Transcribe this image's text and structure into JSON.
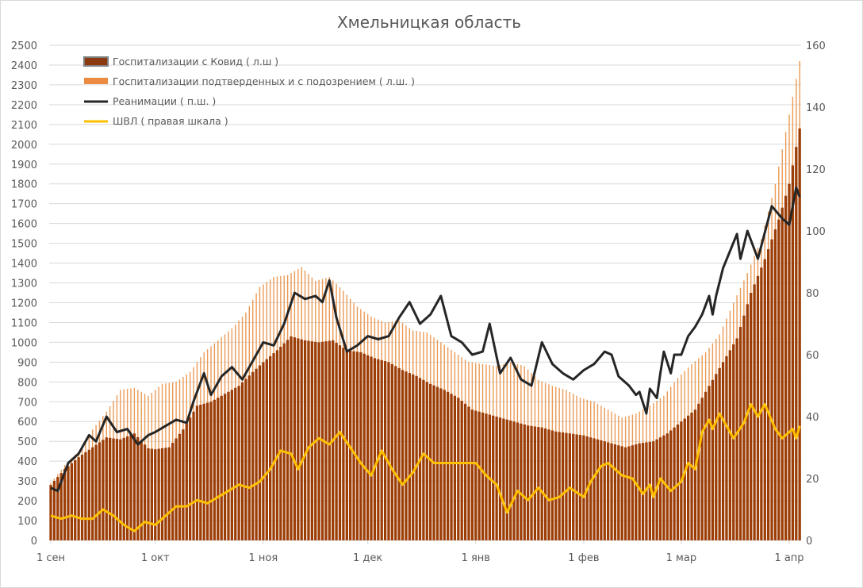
{
  "chart_data": {
    "type": "bar+line",
    "title": "Хмельницкая область",
    "left_axis": {
      "ylim": [
        0,
        2500
      ],
      "step": 100
    },
    "right_axis": {
      "ylim": [
        0,
        160
      ],
      "step": 20
    },
    "x_ticks": [
      {
        "date": "09-01",
        "label": "1 сен"
      },
      {
        "date": "10-01",
        "label": "1 окт"
      },
      {
        "date": "11-01",
        "label": "1 ноя"
      },
      {
        "date": "12-01",
        "label": "1 дек"
      },
      {
        "date": "01-01",
        "label": "1 янв"
      },
      {
        "date": "02-01",
        "label": "1 фев"
      },
      {
        "date": "03-01",
        "label": "1 мар"
      },
      {
        "date": "04-01",
        "label": "1 апр"
      }
    ],
    "grid": true,
    "legend_placement": "top-left",
    "series": [
      {
        "name": "Госпитализации с Ковид ( л.ш )",
        "kind": "bar",
        "axis": "left",
        "color": "#9c3d06",
        "points": [
          [
            "09-01",
            280
          ],
          [
            "09-05",
            360
          ],
          [
            "09-09",
            420
          ],
          [
            "09-13",
            470
          ],
          [
            "09-17",
            520
          ],
          [
            "09-21",
            510
          ],
          [
            "09-25",
            540
          ],
          [
            "09-29",
            465
          ],
          [
            "10-01",
            460
          ],
          [
            "10-05",
            470
          ],
          [
            "10-09",
            560
          ],
          [
            "10-13",
            680
          ],
          [
            "10-17",
            700
          ],
          [
            "10-21",
            740
          ],
          [
            "10-25",
            780
          ],
          [
            "10-29",
            850
          ],
          [
            "11-01",
            900
          ],
          [
            "11-05",
            960
          ],
          [
            "11-09",
            1030
          ],
          [
            "11-13",
            1010
          ],
          [
            "11-17",
            1000
          ],
          [
            "11-21",
            1010
          ],
          [
            "11-25",
            960
          ],
          [
            "11-29",
            950
          ],
          [
            "12-03",
            920
          ],
          [
            "12-07",
            900
          ],
          [
            "12-11",
            860
          ],
          [
            "12-15",
            830
          ],
          [
            "12-19",
            790
          ],
          [
            "12-23",
            760
          ],
          [
            "12-27",
            720
          ],
          [
            "12-31",
            660
          ],
          [
            "01-04",
            640
          ],
          [
            "01-08",
            620
          ],
          [
            "01-12",
            600
          ],
          [
            "01-16",
            580
          ],
          [
            "01-20",
            570
          ],
          [
            "01-24",
            550
          ],
          [
            "01-28",
            540
          ],
          [
            "02-01",
            530
          ],
          [
            "02-05",
            510
          ],
          [
            "02-09",
            490
          ],
          [
            "02-13",
            470
          ],
          [
            "02-17",
            490
          ],
          [
            "02-21",
            500
          ],
          [
            "02-25",
            540
          ],
          [
            "03-01",
            600
          ],
          [
            "03-05",
            660
          ],
          [
            "03-09",
            780
          ],
          [
            "03-13",
            900
          ],
          [
            "03-17",
            1020
          ],
          [
            "03-21",
            1250
          ],
          [
            "03-25",
            1420
          ],
          [
            "03-29",
            1620
          ],
          [
            "04-01",
            1800
          ],
          [
            "04-04",
            2080
          ]
        ]
      },
      {
        "name": "Госпитализации подтверденных и с подозрением ( л.ш. )",
        "kind": "bar",
        "axis": "left",
        "color": "#eb9a55",
        "points": [
          [
            "09-01",
            290
          ],
          [
            "09-05",
            380
          ],
          [
            "09-09",
            450
          ],
          [
            "09-13",
            560
          ],
          [
            "09-17",
            650
          ],
          [
            "09-21",
            760
          ],
          [
            "09-25",
            770
          ],
          [
            "09-29",
            730
          ],
          [
            "10-03",
            790
          ],
          [
            "10-07",
            800
          ],
          [
            "10-11",
            850
          ],
          [
            "10-15",
            950
          ],
          [
            "10-19",
            1010
          ],
          [
            "10-23",
            1070
          ],
          [
            "10-27",
            1150
          ],
          [
            "10-31",
            1280
          ],
          [
            "11-04",
            1330
          ],
          [
            "11-08",
            1340
          ],
          [
            "11-12",
            1380
          ],
          [
            "11-16",
            1310
          ],
          [
            "11-20",
            1330
          ],
          [
            "11-24",
            1260
          ],
          [
            "11-28",
            1180
          ],
          [
            "12-02",
            1130
          ],
          [
            "12-06",
            1100
          ],
          [
            "12-10",
            1110
          ],
          [
            "12-14",
            1060
          ],
          [
            "12-18",
            1050
          ],
          [
            "12-22",
            1000
          ],
          [
            "12-26",
            950
          ],
          [
            "12-30",
            900
          ],
          [
            "01-03",
            890
          ],
          [
            "01-07",
            880
          ],
          [
            "01-11",
            900
          ],
          [
            "01-15",
            880
          ],
          [
            "01-19",
            810
          ],
          [
            "01-23",
            780
          ],
          [
            "01-27",
            760
          ],
          [
            "01-31",
            720
          ],
          [
            "02-04",
            700
          ],
          [
            "02-08",
            660
          ],
          [
            "02-12",
            620
          ],
          [
            "02-16",
            640
          ],
          [
            "02-20",
            680
          ],
          [
            "02-24",
            730
          ],
          [
            "02-28",
            820
          ],
          [
            "03-04",
            890
          ],
          [
            "03-08",
            950
          ],
          [
            "03-12",
            1040
          ],
          [
            "03-16",
            1200
          ],
          [
            "03-20",
            1350
          ],
          [
            "03-24",
            1520
          ],
          [
            "03-28",
            1800
          ],
          [
            "04-01",
            2150
          ],
          [
            "04-04",
            2420
          ]
        ]
      },
      {
        "name": "Реанимации ( п.ш. )",
        "kind": "line",
        "axis": "right",
        "color": "#262626",
        "points": [
          [
            "09-01",
            17
          ],
          [
            "09-03",
            16
          ],
          [
            "09-06",
            25
          ],
          [
            "09-09",
            28
          ],
          [
            "09-12",
            34
          ],
          [
            "09-14",
            32
          ],
          [
            "09-17",
            40
          ],
          [
            "09-20",
            35
          ],
          [
            "09-23",
            36
          ],
          [
            "09-26",
            31
          ],
          [
            "09-29",
            34
          ],
          [
            "10-01",
            35
          ],
          [
            "10-04",
            37
          ],
          [
            "10-07",
            39
          ],
          [
            "10-10",
            38
          ],
          [
            "10-12",
            45
          ],
          [
            "10-15",
            54
          ],
          [
            "10-17",
            47
          ],
          [
            "10-20",
            53
          ],
          [
            "10-23",
            56
          ],
          [
            "10-26",
            52
          ],
          [
            "10-29",
            58
          ],
          [
            "11-01",
            64
          ],
          [
            "11-04",
            63
          ],
          [
            "11-07",
            70
          ],
          [
            "11-10",
            80
          ],
          [
            "11-13",
            78
          ],
          [
            "11-16",
            79
          ],
          [
            "11-18",
            77
          ],
          [
            "11-20",
            84
          ],
          [
            "11-22",
            72
          ],
          [
            "11-25",
            61
          ],
          [
            "11-28",
            63
          ],
          [
            "12-01",
            66
          ],
          [
            "12-04",
            65
          ],
          [
            "12-07",
            66
          ],
          [
            "12-10",
            72
          ],
          [
            "12-13",
            77
          ],
          [
            "12-16",
            70
          ],
          [
            "12-19",
            73
          ],
          [
            "12-22",
            79
          ],
          [
            "12-25",
            66
          ],
          [
            "12-28",
            64
          ],
          [
            "12-31",
            60
          ],
          [
            "01-03",
            61
          ],
          [
            "01-05",
            70
          ],
          [
            "01-08",
            54
          ],
          [
            "01-11",
            59
          ],
          [
            "01-14",
            52
          ],
          [
            "01-17",
            50
          ],
          [
            "01-20",
            64
          ],
          [
            "01-23",
            57
          ],
          [
            "01-26",
            54
          ],
          [
            "01-29",
            52
          ],
          [
            "02-01",
            55
          ],
          [
            "02-04",
            57
          ],
          [
            "02-07",
            61
          ],
          [
            "02-09",
            60
          ],
          [
            "02-11",
            53
          ],
          [
            "02-14",
            50
          ],
          [
            "02-16",
            47
          ],
          [
            "02-17",
            48
          ],
          [
            "02-19",
            41
          ],
          [
            "02-20",
            49
          ],
          [
            "02-22",
            46
          ],
          [
            "02-23",
            54
          ],
          [
            "02-24",
            61
          ],
          [
            "02-26",
            54
          ],
          [
            "02-27",
            60
          ],
          [
            "03-01",
            60
          ],
          [
            "03-03",
            66
          ],
          [
            "03-05",
            69
          ],
          [
            "03-07",
            73
          ],
          [
            "03-09",
            79
          ],
          [
            "03-10",
            73
          ],
          [
            "03-11",
            79
          ],
          [
            "03-13",
            88
          ],
          [
            "03-17",
            99
          ],
          [
            "03-18",
            91
          ],
          [
            "03-20",
            100
          ],
          [
            "03-23",
            91
          ],
          [
            "03-27",
            108
          ],
          [
            "03-30",
            104
          ],
          [
            "04-01",
            102
          ],
          [
            "04-03",
            114
          ],
          [
            "04-04",
            111
          ]
        ]
      },
      {
        "name": "ШВЛ ( правая шкала )",
        "kind": "line",
        "axis": "right",
        "color": "#ffc000",
        "points": [
          [
            "09-01",
            8
          ],
          [
            "09-04",
            7
          ],
          [
            "09-07",
            8
          ],
          [
            "09-10",
            7
          ],
          [
            "09-13",
            7
          ],
          [
            "09-16",
            10
          ],
          [
            "09-19",
            8
          ],
          [
            "09-22",
            5
          ],
          [
            "09-25",
            3
          ],
          [
            "09-28",
            6
          ],
          [
            "10-01",
            5
          ],
          [
            "10-04",
            8
          ],
          [
            "10-07",
            11
          ],
          [
            "10-10",
            11
          ],
          [
            "10-13",
            13
          ],
          [
            "10-16",
            12
          ],
          [
            "10-19",
            14
          ],
          [
            "10-22",
            16
          ],
          [
            "10-25",
            18
          ],
          [
            "10-28",
            17
          ],
          [
            "10-31",
            19
          ],
          [
            "11-03",
            23
          ],
          [
            "11-06",
            29
          ],
          [
            "11-09",
            28
          ],
          [
            "11-11",
            23
          ],
          [
            "11-14",
            30
          ],
          [
            "11-17",
            33
          ],
          [
            "11-20",
            31
          ],
          [
            "11-23",
            35
          ],
          [
            "11-26",
            30
          ],
          [
            "11-29",
            25
          ],
          [
            "12-02",
            21
          ],
          [
            "12-05",
            29
          ],
          [
            "12-08",
            23
          ],
          [
            "12-11",
            18
          ],
          [
            "12-14",
            22
          ],
          [
            "12-17",
            28
          ],
          [
            "12-20",
            25
          ],
          [
            "12-23",
            25
          ],
          [
            "12-26",
            25
          ],
          [
            "12-29",
            25
          ],
          [
            "01-01",
            25
          ],
          [
            "01-04",
            21
          ],
          [
            "01-07",
            18
          ],
          [
            "01-10",
            9
          ],
          [
            "01-13",
            16
          ],
          [
            "01-16",
            13
          ],
          [
            "01-19",
            17
          ],
          [
            "01-22",
            13
          ],
          [
            "01-25",
            14
          ],
          [
            "01-28",
            17
          ],
          [
            "02-01",
            14
          ],
          [
            "02-03",
            19
          ],
          [
            "02-06",
            24
          ],
          [
            "02-08",
            25
          ],
          [
            "02-12",
            21
          ],
          [
            "02-15",
            20
          ],
          [
            "02-18",
            15
          ],
          [
            "02-20",
            18
          ],
          [
            "02-21",
            14
          ],
          [
            "02-23",
            20
          ],
          [
            "02-26",
            16
          ],
          [
            "03-01",
            19
          ],
          [
            "03-03",
            25
          ],
          [
            "03-05",
            23
          ],
          [
            "03-07",
            35
          ],
          [
            "03-09",
            39
          ],
          [
            "03-10",
            36
          ],
          [
            "03-12",
            41
          ],
          [
            "03-16",
            33
          ],
          [
            "03-19",
            38
          ],
          [
            "03-21",
            44
          ],
          [
            "03-23",
            40
          ],
          [
            "03-25",
            44
          ],
          [
            "03-28",
            36
          ],
          [
            "03-30",
            33
          ],
          [
            "04-02",
            36
          ],
          [
            "04-03",
            33
          ],
          [
            "04-04",
            37
          ]
        ]
      }
    ]
  }
}
